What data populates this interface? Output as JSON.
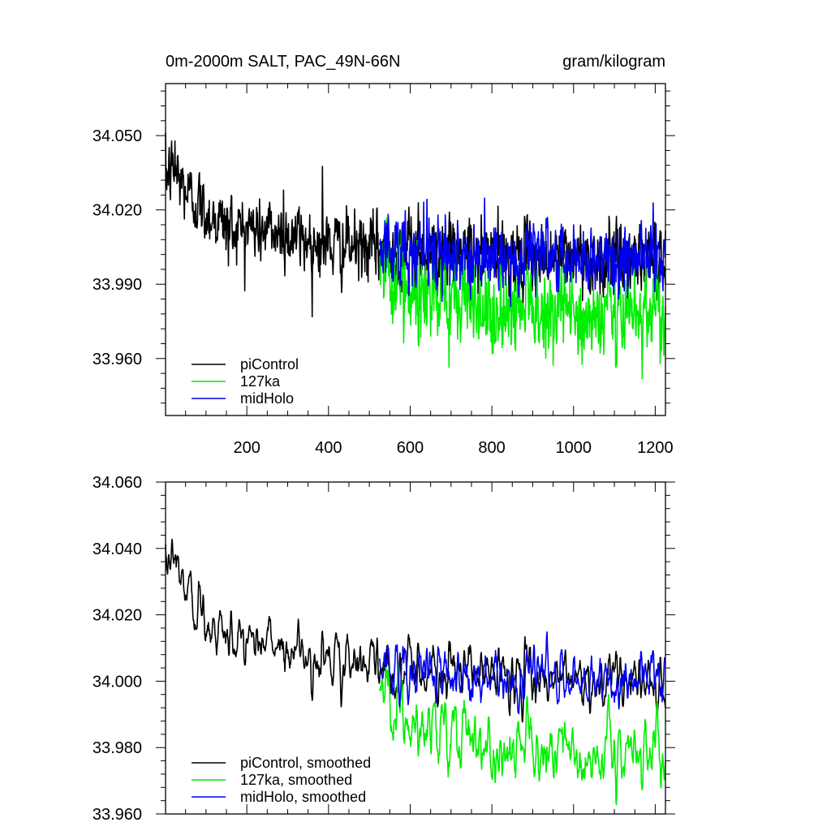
{
  "chart_data": [
    {
      "type": "line",
      "title": "0m-2000m SALT, PAC_49N-66N",
      "units": "gram/kilogram",
      "xlim": [
        1,
        1225
      ],
      "ylim": [
        33.937,
        34.071
      ],
      "xticks": [
        200,
        400,
        600,
        800,
        1000,
        1200
      ],
      "xtick_labels": [
        "200",
        "400",
        "600",
        "800",
        "1000",
        "1200"
      ],
      "yticks": [
        34.05,
        34.02,
        33.99,
        33.96
      ],
      "ytick_labels": [
        "34.050",
        "34.020",
        "33.990",
        "33.960"
      ],
      "legend_position": "bottom-left",
      "series": [
        {
          "name": "piControl",
          "color": "#000000",
          "x_range": [
            1,
            1225
          ],
          "trend_x": [
            1,
            20,
            50,
            100,
            150,
            200,
            300,
            400,
            500,
            600,
            700,
            800,
            900,
            1000,
            1100,
            1225
          ],
          "trend_y": [
            34.034,
            34.036,
            34.028,
            34.019,
            34.014,
            34.013,
            34.01,
            34.006,
            34.004,
            34.004,
            34.003,
            34.002,
            34.001,
            34.001,
            34.0,
            34.0
          ]
        },
        {
          "name": "127ka",
          "color": "#00ee00",
          "x_range": [
            525,
            1225
          ],
          "trend_x": [
            525,
            560,
            600,
            650,
            700,
            800,
            900,
            1000,
            1100,
            1225
          ],
          "trend_y": [
            34.001,
            33.992,
            33.986,
            33.983,
            33.981,
            33.98,
            33.979,
            33.979,
            33.978,
            33.977
          ]
        },
        {
          "name": "midHolo",
          "color": "#0000ee",
          "x_range": [
            525,
            1225
          ],
          "trend_x": [
            525,
            600,
            700,
            800,
            900,
            1000,
            1100,
            1225
          ],
          "trend_y": [
            34.004,
            34.003,
            34.002,
            34.001,
            34.0,
            34.0,
            34.0,
            34.001
          ]
        }
      ]
    },
    {
      "type": "line",
      "title": "",
      "xlim": [
        1,
        1225
      ],
      "ylim": [
        33.96,
        34.06
      ],
      "xticks": [
        200,
        400,
        600,
        800,
        1000,
        1200
      ],
      "yticks": [
        34.06,
        34.04,
        34.02,
        34.0,
        33.98,
        33.96
      ],
      "ytick_labels": [
        "34.060",
        "34.040",
        "34.020",
        "34.000",
        "33.980",
        "33.960"
      ],
      "legend_position": "bottom-left",
      "series": [
        {
          "name": "piControl, smoothed",
          "color": "#000000",
          "x_range": [
            1,
            1225
          ]
        },
        {
          "name": "127ka, smoothed",
          "color": "#00ee00",
          "x_range": [
            525,
            1225
          ]
        },
        {
          "name": "midHolo, smoothed",
          "color": "#0000ee",
          "x_range": [
            525,
            1225
          ]
        }
      ]
    }
  ]
}
